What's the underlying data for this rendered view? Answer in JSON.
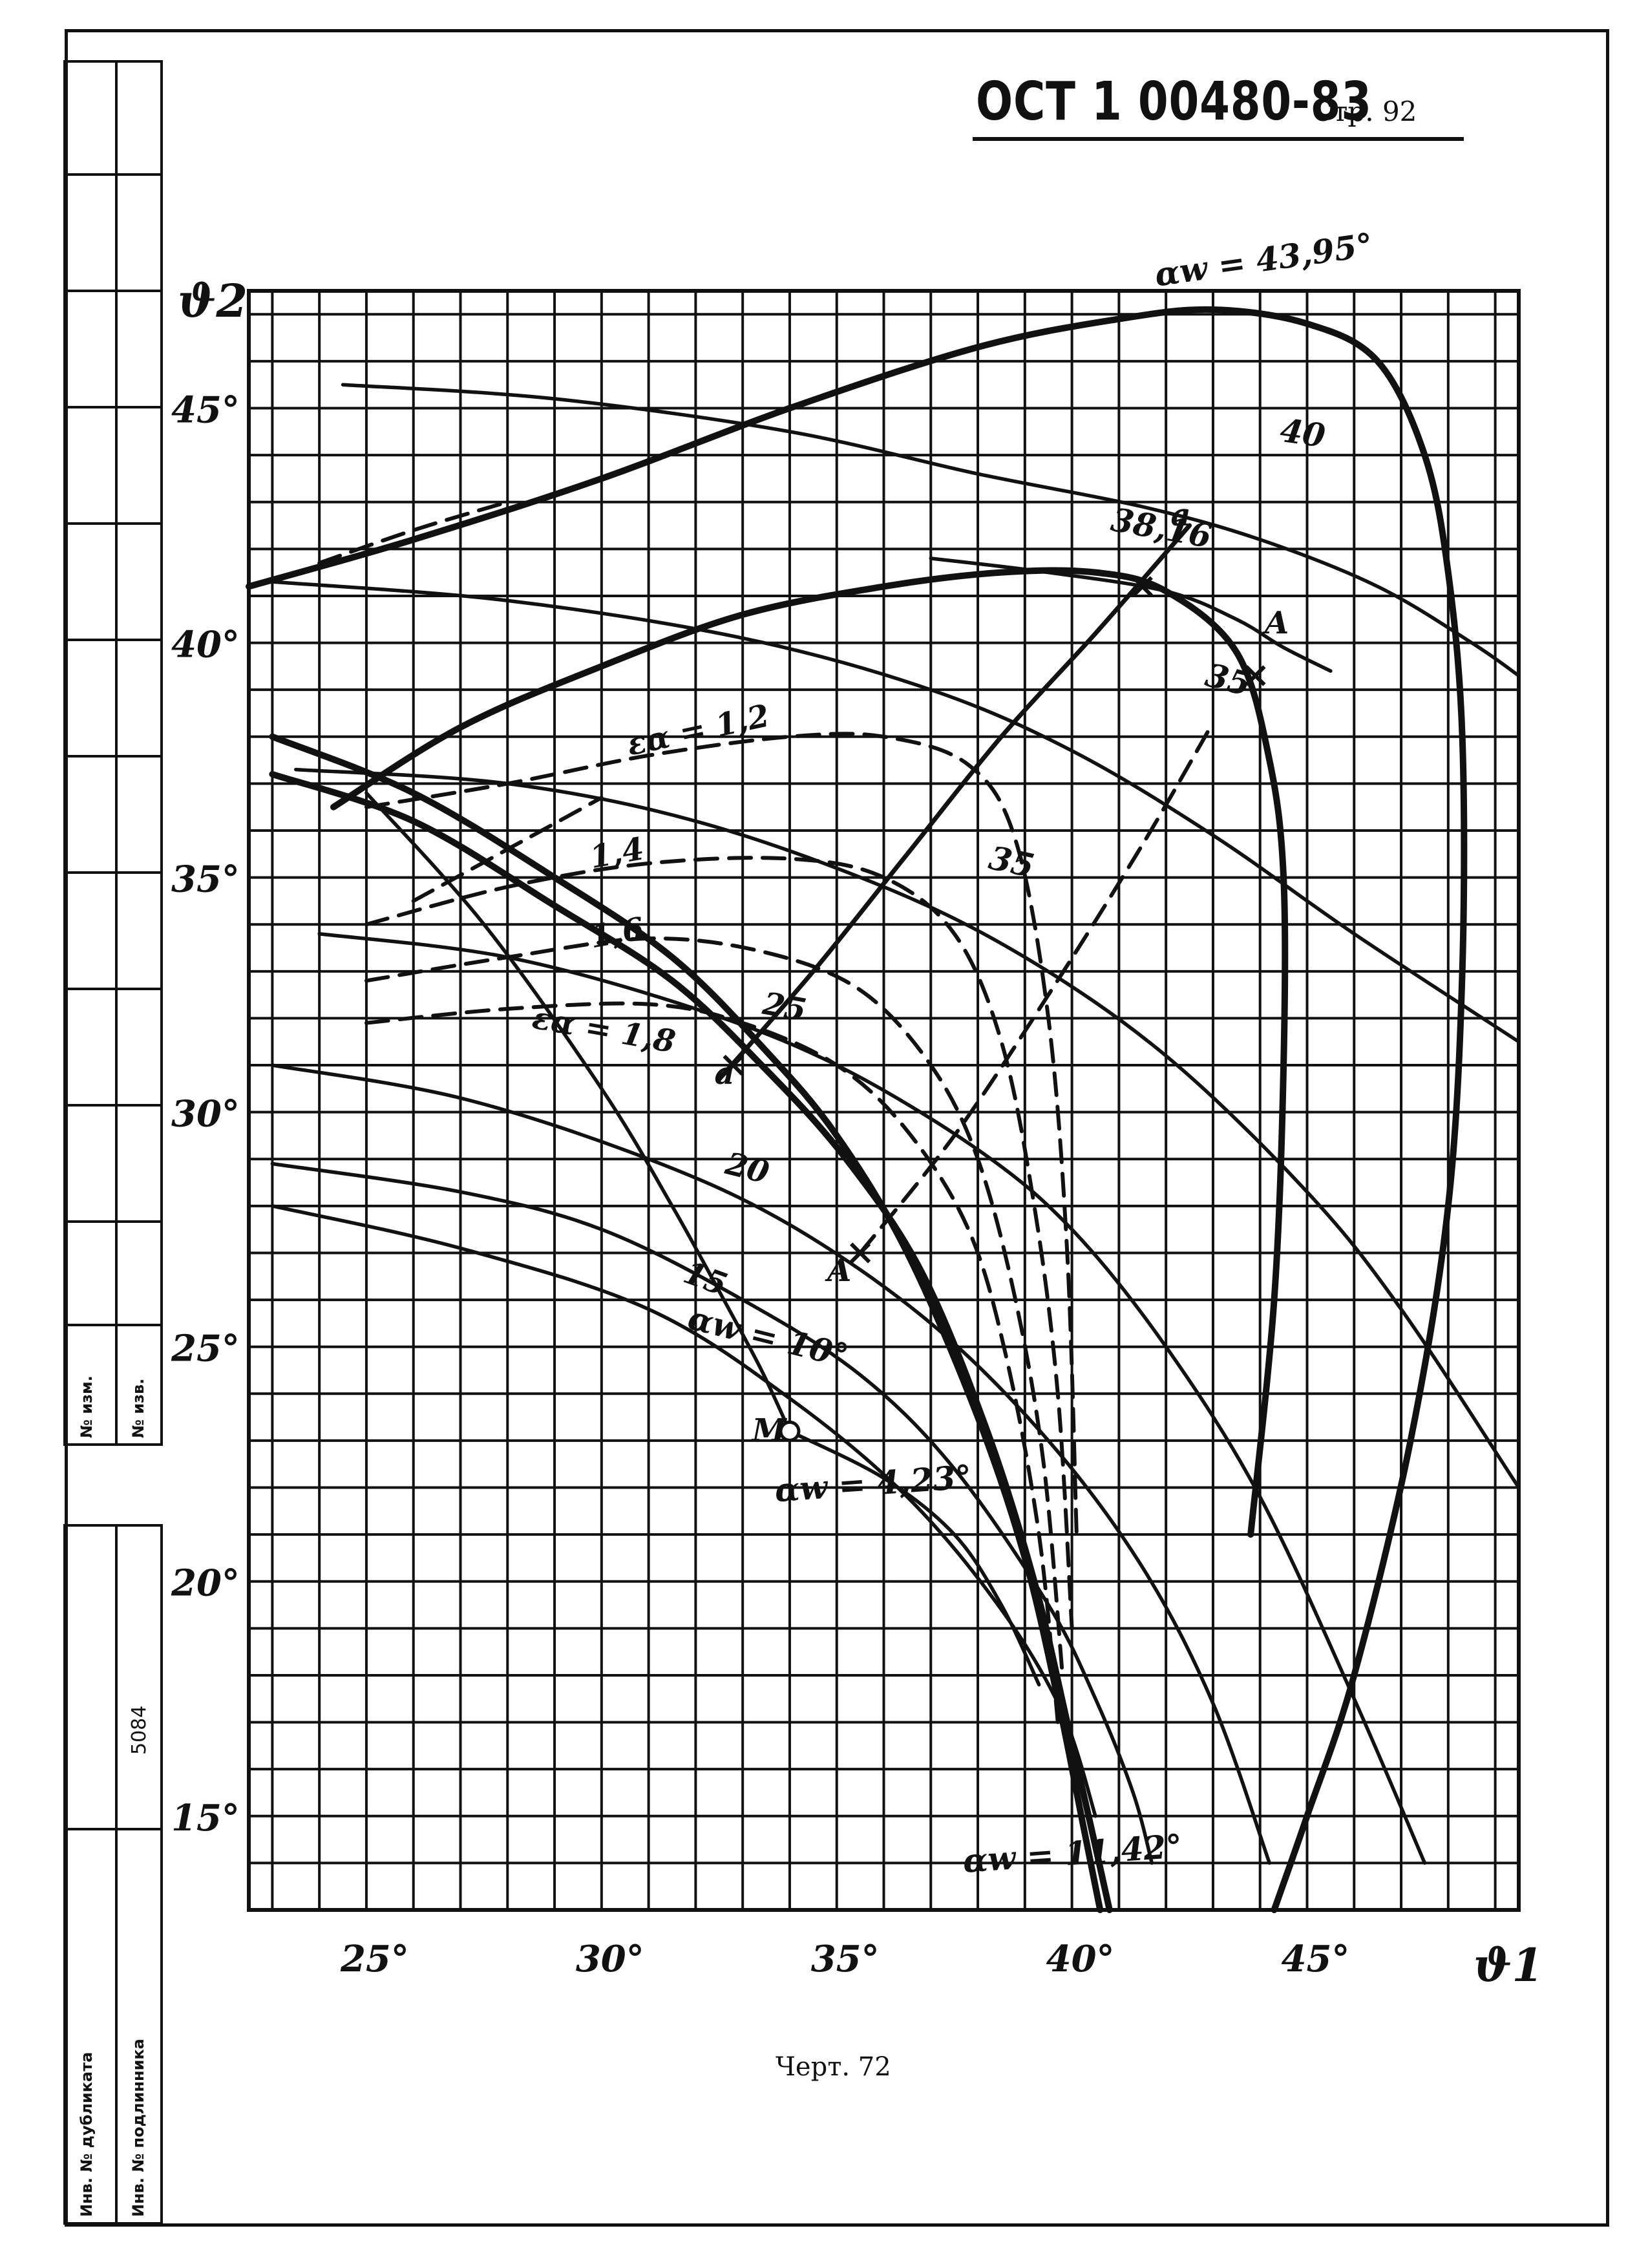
{
  "header": {
    "doc_code": "ОСТ 1 00480-83",
    "page": "Стр. 92"
  },
  "caption": "Черт. 72",
  "side_stamp": {
    "change_no": "№ изм.",
    "notice_no": "№ изв.",
    "doc_number": "5084",
    "dup_inv": "Инв. № дубликата",
    "orig_inv": "Инв. № подлинника"
  },
  "chart_data": {
    "type": "line",
    "xlabel": "ϑ1",
    "ylabel": "ϑ2",
    "xlim": [
      22.5,
      49.5
    ],
    "ylim": [
      13,
      47.5
    ],
    "x_ticks": [
      25,
      30,
      35,
      40,
      45
    ],
    "x_tick_labels": [
      "25°",
      "30°",
      "35°",
      "40°",
      "45°"
    ],
    "y_ticks": [
      15,
      20,
      25,
      30,
      35,
      40,
      45
    ],
    "y_tick_labels": [
      "15°",
      "20°",
      "25°",
      "30°",
      "35°",
      "40°",
      "45°"
    ],
    "grid": true,
    "curve_labels": {
      "aw_43_95": "αw = 43,95°",
      "aw_10": "αw = 10°",
      "aw_4_23": "αw = 4,23°",
      "aw_11_42": "αw = 11,42°",
      "l_40": "40",
      "l_38_16": "38,16",
      "l_35a": "35",
      "l_35b": "35",
      "l_25": "25",
      "l_20": "20",
      "l_15": "15",
      "e_1_2": "εα = 1,2",
      "e_1_4": "1,4",
      "e_1_6": "1,6",
      "e_1_8": "εα = 1,8"
    },
    "point_labels": {
      "M": "M",
      "A1": "A",
      "A2": "A",
      "a": "a",
      "a2": "a"
    },
    "series": [
      {
        "id": "aw_43_95",
        "style": "bold",
        "x": [
          22.5,
          26,
          30,
          34,
          38,
          41,
          43,
          45,
          46.5,
          47.5,
          48,
          48.3,
          48.3,
          48,
          47.2,
          46,
          45,
          44.3
        ],
        "y": [
          41.2,
          42.2,
          43.5,
          45,
          46.3,
          46.9,
          47.1,
          46.8,
          46,
          44,
          41.5,
          38,
          33,
          28,
          23,
          18,
          15,
          13
        ]
      },
      {
        "id": "aw_38_16",
        "style": "bold",
        "x": [
          24.3,
          27,
          30,
          33,
          36,
          38.5,
          40.5,
          42,
          43.5,
          44.2,
          44.5,
          44.5,
          44.3,
          43.8
        ],
        "y": [
          36.5,
          38.2,
          39.5,
          40.6,
          41.2,
          41.5,
          41.5,
          41.1,
          39.8,
          37.5,
          35,
          31,
          26,
          21
        ]
      },
      {
        "id": "c_40",
        "style": "thin",
        "x": [
          24.5,
          29,
          34,
          38,
          41.5,
          44,
          46.5,
          48.5,
          49.5
        ],
        "y": [
          45.5,
          45.2,
          44.5,
          43.6,
          42.9,
          42.2,
          41.2,
          40,
          39.3
        ]
      },
      {
        "id": "c_35_upper",
        "style": "thin",
        "x": [
          23,
          28,
          33,
          37,
          40,
          43,
          46,
          49.5
        ],
        "y": [
          41.3,
          40.9,
          40.1,
          39,
          37.7,
          35.9,
          33.8,
          31.5
        ]
      },
      {
        "id": "c_35_lower",
        "style": "thin",
        "x": [
          23.5,
          28,
          32,
          36,
          39,
          42,
          45,
          47,
          49.5
        ],
        "y": [
          37.3,
          37,
          36.2,
          34.8,
          33.3,
          31.2,
          28.3,
          25.8,
          22
        ]
      },
      {
        "id": "c_25",
        "style": "thin",
        "x": [
          24,
          28,
          32,
          35,
          38,
          40,
          42,
          44,
          46,
          47.5
        ],
        "y": [
          33.8,
          33.3,
          32.2,
          31,
          29.2,
          27.5,
          25,
          21.8,
          17.5,
          14
        ]
      },
      {
        "id": "c_20",
        "style": "thin",
        "x": [
          23,
          27,
          31,
          34,
          37,
          39.5,
          41.5,
          43,
          44.2
        ],
        "y": [
          31,
          30.3,
          29,
          27.6,
          25.5,
          23,
          20.3,
          17.4,
          14
        ]
      },
      {
        "id": "c_15",
        "style": "thin",
        "x": [
          23,
          27,
          30,
          33,
          35.5,
          37.5,
          39.5,
          40.5,
          41.3,
          41.7
        ],
        "y": [
          28.9,
          28.3,
          27.5,
          26,
          24.4,
          22.4,
          19.5,
          17.5,
          15.5,
          14
        ]
      },
      {
        "id": "aw_10",
        "style": "thin",
        "x": [
          23,
          27,
          31,
          34,
          36.5,
          38.5,
          39.8,
          40.5
        ],
        "y": [
          28,
          27.1,
          25.8,
          23.9,
          21.8,
          19.4,
          17.2,
          15
        ]
      },
      {
        "id": "aw_4_23",
        "style": "thin",
        "x": [
          34,
          36,
          37.5,
          38.5,
          39.3
        ],
        "y": [
          23.2,
          22.2,
          21,
          19.5,
          17.8
        ]
      },
      {
        "id": "l_38_16_wing",
        "style": "thin",
        "x": [
          37,
          39.5,
          42,
          43.5,
          44.5,
          45.5
        ],
        "y": [
          41.8,
          41.5,
          41.1,
          40.5,
          39.9,
          39.4
        ]
      },
      {
        "id": "aw_11_42_b1",
        "style": "bold",
        "x": [
          23,
          26,
          29,
          31.5,
          33.5,
          35,
          36.5,
          38,
          39,
          39.7,
          40.2,
          40.6
        ],
        "y": [
          38,
          36.8,
          35,
          33.3,
          31.3,
          29.5,
          27,
          23.5,
          20.5,
          17.5,
          15,
          13
        ]
      },
      {
        "id": "aw_11_42_b2",
        "style": "bold",
        "x": [
          23,
          26,
          29,
          31.5,
          33.5,
          35.2,
          36.8,
          38.2,
          39.2,
          39.9,
          40.4,
          40.8
        ],
        "y": [
          37.2,
          36.2,
          34.4,
          32.8,
          30.9,
          29,
          26.6,
          23.2,
          20,
          17,
          14.8,
          13
        ]
      },
      {
        "id": "m_15_curve",
        "style": "thin",
        "x": [
          25,
          27.5,
          30,
          31.5,
          32.6,
          33.4,
          34
        ],
        "y": [
          36.8,
          34,
          30.5,
          28,
          26,
          24.5,
          23.2
        ]
      },
      {
        "id": "e_1_2",
        "style": "dashed",
        "x": [
          25,
          28,
          31,
          34,
          36,
          37.8,
          38.8,
          39.5,
          39.9,
          40.1
        ],
        "y": [
          36.5,
          37,
          37.6,
          38,
          38,
          37.4,
          35.8,
          32,
          27,
          21
        ]
      },
      {
        "id": "e_1_4",
        "style": "dashed",
        "x": [
          25,
          28,
          31,
          34,
          36,
          37.5,
          38.5,
          39.2,
          39.7,
          40
        ],
        "y": [
          34,
          34.8,
          35.3,
          35.4,
          35,
          33.8,
          31.5,
          28,
          24,
          19
        ]
      },
      {
        "id": "e_1_6",
        "style": "dashed",
        "x": [
          25,
          28,
          31,
          33.5,
          35.5,
          37,
          38,
          38.8,
          39.4,
          39.8
        ],
        "y": [
          32.8,
          33.3,
          33.7,
          33.4,
          32.6,
          31,
          29,
          26,
          22.5,
          18
        ]
      },
      {
        "id": "e_1_8",
        "style": "dashed",
        "x": [
          25,
          28,
          31,
          33,
          35,
          36.5,
          37.8,
          38.6,
          39.3,
          39.7
        ],
        "y": [
          31.9,
          32.2,
          32.3,
          31.9,
          31,
          29.6,
          27.5,
          24.8,
          21,
          17
        ]
      },
      {
        "id": "aw_43_95_dash_upper",
        "style": "dashed",
        "x": [
          24,
          26,
          28
        ],
        "y": [
          41.7,
          42.4,
          43
        ]
      },
      {
        "id": "line_a",
        "style": "medium",
        "x": [
          32.5,
          34.5,
          36.5,
          38.5,
          40.5,
          42.5
        ],
        "y": [
          30.7,
          33,
          35.5,
          38,
          40.2,
          42.5
        ]
      },
      {
        "id": "line_A_dash",
        "style": "dashed",
        "x": [
          35.5,
          37.5,
          39.5,
          41.5,
          43
        ],
        "y": [
          27,
          29.5,
          32.5,
          35.7,
          38.3
        ]
      },
      {
        "id": "e_1_2_left",
        "style": "dashed",
        "x": [
          26,
          28,
          30
        ],
        "y": [
          34.5,
          35.6,
          36.7
        ]
      }
    ],
    "points": [
      {
        "id": "M",
        "x": 34,
        "y": 23.2
      },
      {
        "id": "A1",
        "x": 35.5,
        "y": 27
      },
      {
        "id": "A2",
        "x": 43.9,
        "y": 39.3
      },
      {
        "id": "a",
        "x": 32.8,
        "y": 31
      },
      {
        "id": "a2",
        "x": 41.5,
        "y": 41.2
      }
    ]
  }
}
